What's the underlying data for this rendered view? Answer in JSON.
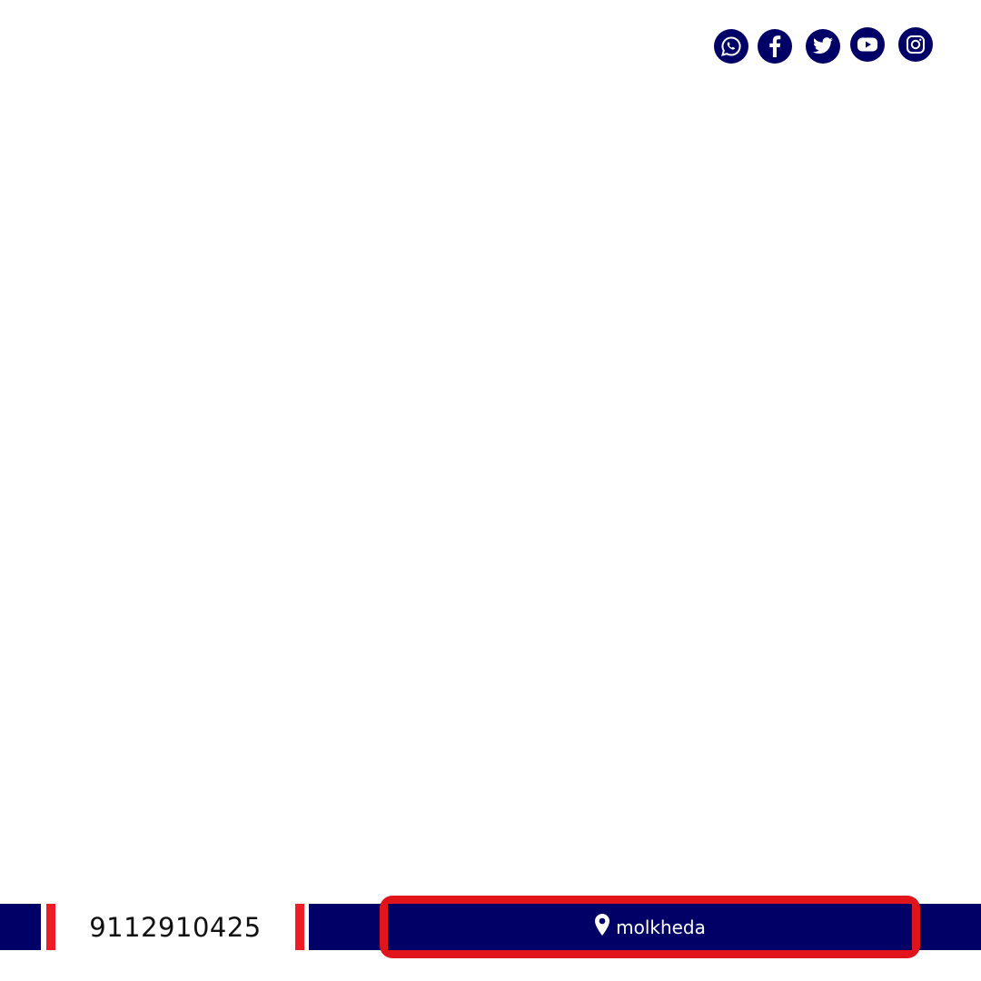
{
  "social_icons": [
    {
      "name": "whatsapp-icon"
    },
    {
      "name": "facebook-icon"
    },
    {
      "name": "twitter-icon"
    },
    {
      "name": "youtube-icon"
    },
    {
      "name": "instagram-icon"
    }
  ],
  "footer": {
    "phone": "9112910425",
    "location": "molkheda",
    "location_icon": "map-pin-icon"
  },
  "colors": {
    "navy": "#000066",
    "red": "#ee1c25",
    "background": "#ffffff"
  }
}
